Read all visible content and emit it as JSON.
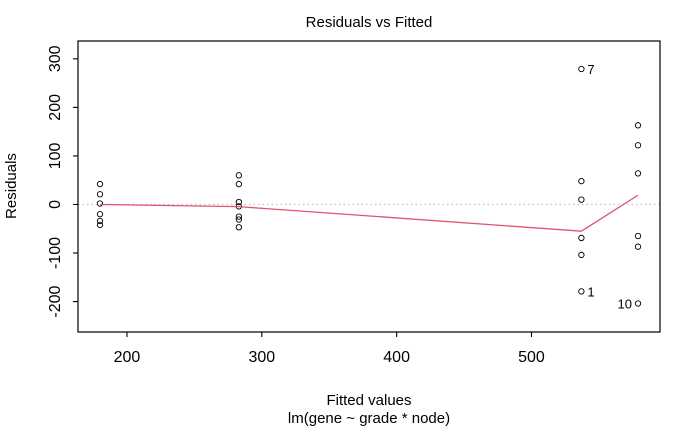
{
  "chart_data": {
    "type": "scatter",
    "title": "Residuals vs Fitted",
    "xlabel": "Fitted values",
    "model_label": "lm(gene ~ grade * node)",
    "ylabel": "Residuals",
    "xlim": [
      163.7,
      595.3
    ],
    "ylim": [
      -262.7,
      336.7
    ],
    "x_ticks": [
      200,
      300,
      400,
      500
    ],
    "y_ticks": [
      -200,
      -100,
      0,
      100,
      200,
      300
    ],
    "grid": false,
    "legend": "none",
    "points": [
      {
        "x": 180,
        "y": 42
      },
      {
        "x": 180,
        "y": 21
      },
      {
        "x": 180,
        "y": 2
      },
      {
        "x": 180,
        "y": -20
      },
      {
        "x": 180,
        "y": -34
      },
      {
        "x": 180,
        "y": -42
      },
      {
        "x": 283,
        "y": 60
      },
      {
        "x": 283,
        "y": 42
      },
      {
        "x": 283,
        "y": 5
      },
      {
        "x": 283,
        "y": -4
      },
      {
        "x": 283,
        "y": -25
      },
      {
        "x": 283,
        "y": -31
      },
      {
        "x": 283,
        "y": -47
      },
      {
        "x": 537,
        "y": 279,
        "label": "7",
        "label_side": "right"
      },
      {
        "x": 537,
        "y": 48
      },
      {
        "x": 537,
        "y": 10
      },
      {
        "x": 537,
        "y": -69
      },
      {
        "x": 537,
        "y": -104
      },
      {
        "x": 537,
        "y": -179,
        "label": "1",
        "label_side": "right"
      },
      {
        "x": 579,
        "y": 163
      },
      {
        "x": 579,
        "y": 122
      },
      {
        "x": 579,
        "y": 64
      },
      {
        "x": 579,
        "y": -65
      },
      {
        "x": 579,
        "y": -87
      },
      {
        "x": 579,
        "y": -204,
        "label": "10",
        "label_side": "left"
      }
    ],
    "smooth_line": [
      [
        180,
        0
      ],
      [
        283,
        -4.5
      ],
      [
        537,
        -55
      ],
      [
        579,
        19
      ]
    ],
    "reference_line_y": 0,
    "colors": {
      "points": "#000000",
      "smooth": "#DF536B",
      "reference": "#BEBEBE",
      "axis": "#000000",
      "background": "#FFFFFF"
    }
  }
}
